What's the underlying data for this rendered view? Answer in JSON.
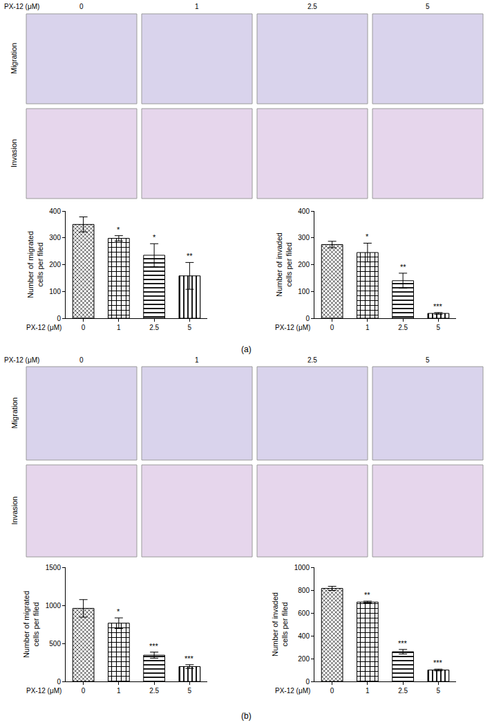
{
  "figure": {
    "panels": [
      {
        "label": "(a)",
        "header": "PX-12 (μM)",
        "doses": [
          "0",
          "1",
          "2.5",
          "5"
        ],
        "rows": [
          "Migration",
          "Invasion"
        ]
      },
      {
        "label": "(b)",
        "header": "PX-12 (μM)",
        "doses": [
          "0",
          "1",
          "2.5",
          "5"
        ],
        "rows": [
          "Migration",
          "Invasion"
        ]
      }
    ]
  },
  "chart_data": [
    {
      "type": "bar",
      "ylabel": [
        "Number of migrated",
        "cells per filed"
      ],
      "xlabel": "PX-12 (μM)",
      "categories": [
        "0",
        "1",
        "2.5",
        "5"
      ],
      "values": [
        350,
        298,
        235,
        158
      ],
      "errors": [
        28,
        10,
        43,
        50
      ],
      "significance": [
        null,
        "*",
        "*",
        "**"
      ],
      "color": "#000000",
      "ylim": [
        0,
        400
      ],
      "yticks": [
        0,
        100,
        200,
        300,
        400
      ],
      "grid": false
    },
    {
      "type": "bar",
      "ylabel": [
        "Number of invaded",
        "cells per filed"
      ],
      "xlabel": "PX-12 (μM)",
      "categories": [
        "0",
        "1",
        "2.5",
        "5"
      ],
      "values": [
        275,
        245,
        140,
        18
      ],
      "errors": [
        12,
        35,
        28,
        3
      ],
      "significance": [
        null,
        "*",
        "**",
        "***"
      ],
      "color": "#000000",
      "ylim": [
        0,
        400
      ],
      "yticks": [
        0,
        100,
        200,
        300,
        400
      ],
      "grid": false
    },
    {
      "type": "bar",
      "ylabel": [
        "Number of migrated",
        "cells per filed"
      ],
      "xlabel": "PX-12 (μM)",
      "categories": [
        "0",
        "1",
        "2.5",
        "5"
      ],
      "values": [
        960,
        765,
        345,
        195
      ],
      "errors": [
        115,
        70,
        40,
        25
      ],
      "significance": [
        null,
        "*",
        "***",
        "***"
      ],
      "color": "#000000",
      "ylim": [
        0,
        1500
      ],
      "yticks": [
        0,
        500,
        1000,
        1500
      ],
      "grid": false
    },
    {
      "type": "bar",
      "ylabel": [
        "Number of invaded",
        "cells per filed"
      ],
      "xlabel": "PX-12 (μM)",
      "categories": [
        "0",
        "1",
        "2.5",
        "5"
      ],
      "values": [
        815,
        695,
        260,
        100
      ],
      "errors": [
        18,
        8,
        20,
        8
      ],
      "significance": [
        null,
        "**",
        "***",
        "***"
      ],
      "color": "#000000",
      "ylim": [
        0,
        1000
      ],
      "yticks": [
        0,
        200,
        400,
        600,
        800,
        1000
      ],
      "grid": false
    }
  ]
}
